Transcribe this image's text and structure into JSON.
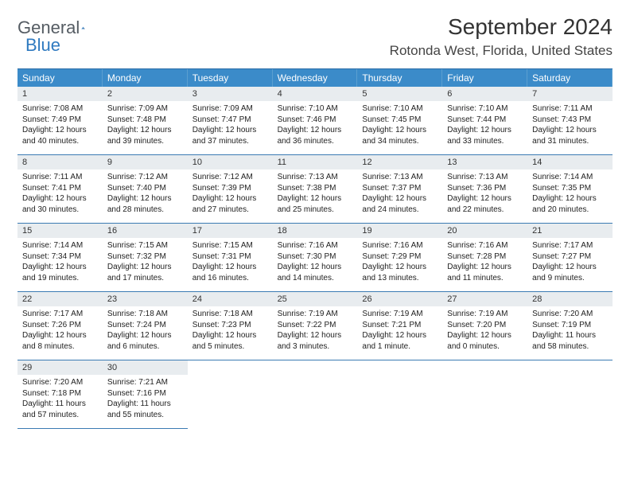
{
  "logo": {
    "text1": "General",
    "text2": "Blue"
  },
  "title": "September 2024",
  "location": "Rotonda West, Florida, United States",
  "colors": {
    "header_bg": "#3b8bc9",
    "row_border": "#3b7bb3",
    "daynum_bg": "#e8ecef",
    "logo_gray": "#555c63",
    "logo_blue": "#2f7ac0"
  },
  "dow": [
    "Sunday",
    "Monday",
    "Tuesday",
    "Wednesday",
    "Thursday",
    "Friday",
    "Saturday"
  ],
  "days": [
    {
      "n": "1",
      "sunrise": "7:08 AM",
      "sunset": "7:49 PM",
      "daylight": "12 hours and 40 minutes."
    },
    {
      "n": "2",
      "sunrise": "7:09 AM",
      "sunset": "7:48 PM",
      "daylight": "12 hours and 39 minutes."
    },
    {
      "n": "3",
      "sunrise": "7:09 AM",
      "sunset": "7:47 PM",
      "daylight": "12 hours and 37 minutes."
    },
    {
      "n": "4",
      "sunrise": "7:10 AM",
      "sunset": "7:46 PM",
      "daylight": "12 hours and 36 minutes."
    },
    {
      "n": "5",
      "sunrise": "7:10 AM",
      "sunset": "7:45 PM",
      "daylight": "12 hours and 34 minutes."
    },
    {
      "n": "6",
      "sunrise": "7:10 AM",
      "sunset": "7:44 PM",
      "daylight": "12 hours and 33 minutes."
    },
    {
      "n": "7",
      "sunrise": "7:11 AM",
      "sunset": "7:43 PM",
      "daylight": "12 hours and 31 minutes."
    },
    {
      "n": "8",
      "sunrise": "7:11 AM",
      "sunset": "7:41 PM",
      "daylight": "12 hours and 30 minutes."
    },
    {
      "n": "9",
      "sunrise": "7:12 AM",
      "sunset": "7:40 PM",
      "daylight": "12 hours and 28 minutes."
    },
    {
      "n": "10",
      "sunrise": "7:12 AM",
      "sunset": "7:39 PM",
      "daylight": "12 hours and 27 minutes."
    },
    {
      "n": "11",
      "sunrise": "7:13 AM",
      "sunset": "7:38 PM",
      "daylight": "12 hours and 25 minutes."
    },
    {
      "n": "12",
      "sunrise": "7:13 AM",
      "sunset": "7:37 PM",
      "daylight": "12 hours and 24 minutes."
    },
    {
      "n": "13",
      "sunrise": "7:13 AM",
      "sunset": "7:36 PM",
      "daylight": "12 hours and 22 minutes."
    },
    {
      "n": "14",
      "sunrise": "7:14 AM",
      "sunset": "7:35 PM",
      "daylight": "12 hours and 20 minutes."
    },
    {
      "n": "15",
      "sunrise": "7:14 AM",
      "sunset": "7:34 PM",
      "daylight": "12 hours and 19 minutes."
    },
    {
      "n": "16",
      "sunrise": "7:15 AM",
      "sunset": "7:32 PM",
      "daylight": "12 hours and 17 minutes."
    },
    {
      "n": "17",
      "sunrise": "7:15 AM",
      "sunset": "7:31 PM",
      "daylight": "12 hours and 16 minutes."
    },
    {
      "n": "18",
      "sunrise": "7:16 AM",
      "sunset": "7:30 PM",
      "daylight": "12 hours and 14 minutes."
    },
    {
      "n": "19",
      "sunrise": "7:16 AM",
      "sunset": "7:29 PM",
      "daylight": "12 hours and 13 minutes."
    },
    {
      "n": "20",
      "sunrise": "7:16 AM",
      "sunset": "7:28 PM",
      "daylight": "12 hours and 11 minutes."
    },
    {
      "n": "21",
      "sunrise": "7:17 AM",
      "sunset": "7:27 PM",
      "daylight": "12 hours and 9 minutes."
    },
    {
      "n": "22",
      "sunrise": "7:17 AM",
      "sunset": "7:26 PM",
      "daylight": "12 hours and 8 minutes."
    },
    {
      "n": "23",
      "sunrise": "7:18 AM",
      "sunset": "7:24 PM",
      "daylight": "12 hours and 6 minutes."
    },
    {
      "n": "24",
      "sunrise": "7:18 AM",
      "sunset": "7:23 PM",
      "daylight": "12 hours and 5 minutes."
    },
    {
      "n": "25",
      "sunrise": "7:19 AM",
      "sunset": "7:22 PM",
      "daylight": "12 hours and 3 minutes."
    },
    {
      "n": "26",
      "sunrise": "7:19 AM",
      "sunset": "7:21 PM",
      "daylight": "12 hours and 1 minute."
    },
    {
      "n": "27",
      "sunrise": "7:19 AM",
      "sunset": "7:20 PM",
      "daylight": "12 hours and 0 minutes."
    },
    {
      "n": "28",
      "sunrise": "7:20 AM",
      "sunset": "7:19 PM",
      "daylight": "11 hours and 58 minutes."
    },
    {
      "n": "29",
      "sunrise": "7:20 AM",
      "sunset": "7:18 PM",
      "daylight": "11 hours and 57 minutes."
    },
    {
      "n": "30",
      "sunrise": "7:21 AM",
      "sunset": "7:16 PM",
      "daylight": "11 hours and 55 minutes."
    }
  ],
  "labels": {
    "sunrise": "Sunrise: ",
    "sunset": "Sunset: ",
    "daylight": "Daylight: "
  },
  "leading_blanks": 0,
  "trailing_blanks": 5
}
